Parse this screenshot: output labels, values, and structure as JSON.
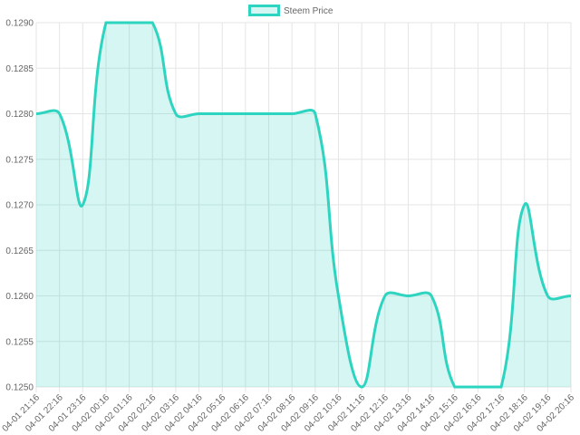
{
  "chart_data": {
    "type": "line",
    "categories": [
      "04-01 21:16",
      "04-01 22:16",
      "04-01 23:16",
      "04-02 00:16",
      "04-02 01:16",
      "04-02 02:16",
      "04-02 03:16",
      "04-02 04:16",
      "04-02 05:16",
      "04-02 06:16",
      "04-02 07:16",
      "04-02 08:16",
      "04-02 09:16",
      "04-02 10:16",
      "04-02 11:16",
      "04-02 12:16",
      "04-02 13:16",
      "04-02 14:16",
      "04-02 15:16",
      "04-02 16:16",
      "04-02 17:16",
      "04-02 18:16",
      "04-02 19:16",
      "04-02 20:16"
    ],
    "series": [
      {
        "name": "Steem Price",
        "color": "#2dd4bf",
        "fill": "rgba(45,212,191,0.2)",
        "values": [
          0.128,
          0.128,
          0.127,
          0.129,
          0.129,
          0.129,
          0.128,
          0.128,
          0.128,
          0.128,
          0.128,
          0.128,
          0.128,
          0.126,
          0.125,
          0.126,
          0.126,
          0.126,
          0.125,
          0.125,
          0.125,
          0.127,
          0.126,
          0.126
        ]
      }
    ],
    "ylim": [
      0.125,
      0.129
    ],
    "yticks": [
      {
        "value": 0.125,
        "label": "0.1250"
      },
      0.1255,
      {
        "value": 0.126,
        "label": "0.1260"
      },
      0.1265,
      {
        "value": 0.127,
        "label": "0.1270"
      },
      0.1275,
      {
        "value": 0.128,
        "label": "0.1280"
      },
      0.1285,
      {
        "value": 0.129,
        "label": "0.1290"
      }
    ],
    "grid": true,
    "legend": "top"
  }
}
